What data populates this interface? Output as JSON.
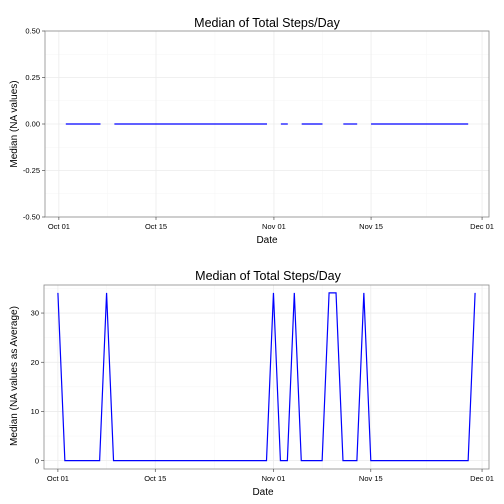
{
  "chart_data": [
    {
      "type": "line",
      "title": "Median of Total Steps/Day",
      "xlabel": "Date",
      "ylabel": "Median (NA values)",
      "grid": true,
      "xlim": [
        "2012-09-29",
        "2012-12-02"
      ],
      "ylim": [
        -0.5,
        0.5
      ],
      "xticks": [
        {
          "date": "2012-10-01",
          "label": "Oct 01"
        },
        {
          "date": "2012-10-15",
          "label": "Oct 15"
        },
        {
          "date": "2012-11-01",
          "label": "Nov 01"
        },
        {
          "date": "2012-11-15",
          "label": "Nov 15"
        },
        {
          "date": "2012-12-01",
          "label": "Dec 01"
        }
      ],
      "yticks": [
        {
          "value": 0.5,
          "label": "0.50"
        },
        {
          "value": 0.25,
          "label": "0.25"
        },
        {
          "value": 0.0,
          "label": "0.00"
        },
        {
          "value": -0.25,
          "label": "-0.25"
        },
        {
          "value": -0.5,
          "label": "-0.50"
        }
      ],
      "color": "#0000ff",
      "segments": [
        {
          "x": [
            "2012-10-02",
            "2012-10-07"
          ],
          "y": [
            0,
            0
          ]
        },
        {
          "x": [
            "2012-10-09",
            "2012-10-31"
          ],
          "y": [
            0,
            0
          ]
        },
        {
          "x": [
            "2012-11-02",
            "2012-11-03"
          ],
          "y": [
            0,
            0
          ]
        },
        {
          "x": [
            "2012-11-05",
            "2012-11-08"
          ],
          "y": [
            0,
            0
          ]
        },
        {
          "x": [
            "2012-11-11",
            "2012-11-13"
          ],
          "y": [
            0,
            0
          ]
        },
        {
          "x": [
            "2012-11-15",
            "2012-11-29"
          ],
          "y": [
            0,
            0
          ]
        }
      ]
    },
    {
      "type": "line",
      "title": "Median of Total Steps/Day",
      "xlabel": "Date",
      "ylabel": "Median (NA values as Average)",
      "grid": true,
      "xlim": [
        "2012-09-29",
        "2012-12-02"
      ],
      "ylim": [
        -1.7,
        35.7
      ],
      "xticks": [
        {
          "date": "2012-10-01",
          "label": "Oct 01"
        },
        {
          "date": "2012-10-15",
          "label": "Oct 15"
        },
        {
          "date": "2012-11-01",
          "label": "Nov 01"
        },
        {
          "date": "2012-11-15",
          "label": "Nov 15"
        },
        {
          "date": "2012-12-01",
          "label": "Dec 01"
        }
      ],
      "yticks": [
        {
          "value": 30,
          "label": "30"
        },
        {
          "value": 20,
          "label": "20"
        },
        {
          "value": 10,
          "label": "10"
        },
        {
          "value": 0,
          "label": "0"
        }
      ],
      "color": "#0000ff",
      "x": [
        "2012-10-01",
        "2012-10-02",
        "2012-10-07",
        "2012-10-08",
        "2012-10-09",
        "2012-10-31",
        "2012-11-01",
        "2012-11-02",
        "2012-11-03",
        "2012-11-04",
        "2012-11-05",
        "2012-11-08",
        "2012-11-09",
        "2012-11-10",
        "2012-11-11",
        "2012-11-13",
        "2012-11-14",
        "2012-11-15",
        "2012-11-29",
        "2012-11-30"
      ],
      "y": [
        34.1,
        0,
        0,
        34.1,
        0,
        0,
        34.1,
        0,
        0,
        34.1,
        0,
        0,
        34.1,
        34.1,
        0,
        0,
        34.1,
        0,
        0,
        34.1
      ]
    }
  ]
}
